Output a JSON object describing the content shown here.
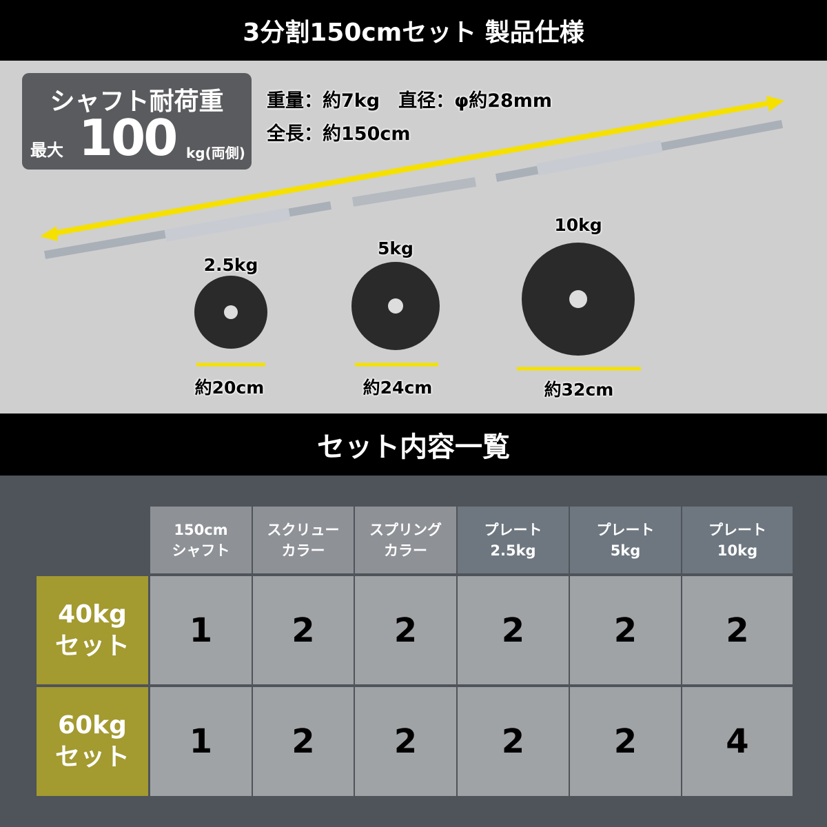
{
  "header": {
    "title": "3分割150cmセット 製品仕様"
  },
  "spec": {
    "badge": {
      "title": "シャフト耐荷重",
      "prefix": "最大",
      "value": "100",
      "unit": "kg(両側)"
    },
    "line1": "重量：約7kg　直径：φ約28mm",
    "line2": "全長：約150cm",
    "plates": [
      {
        "weight": "2.5kg",
        "size": "約20cm"
      },
      {
        "weight": "5kg",
        "size": "約24cm"
      },
      {
        "weight": "10kg",
        "size": "約32cm"
      }
    ],
    "colors": {
      "arrow": "#f5e000",
      "background": "#cfcfcf",
      "plate": "#2a2a2a"
    }
  },
  "contents": {
    "title": "セット内容一覧",
    "columns": [
      "150cm\nシャフト",
      "スクリュー\nカラー",
      "スプリング\nカラー",
      "プレート\n2.5kg",
      "プレート\n5kg",
      "プレート\n10kg"
    ],
    "rows": [
      {
        "label": "40kg\nセット",
        "values": [
          "1",
          "2",
          "2",
          "2",
          "2",
          "2"
        ]
      },
      {
        "label": "60kg\nセット",
        "values": [
          "1",
          "2",
          "2",
          "2",
          "2",
          "4"
        ]
      }
    ],
    "colors": {
      "row_label": "#a39a30",
      "header_light": "#8e9196",
      "header_dark": "#6e7780",
      "cell": "#a0a3a6"
    }
  }
}
